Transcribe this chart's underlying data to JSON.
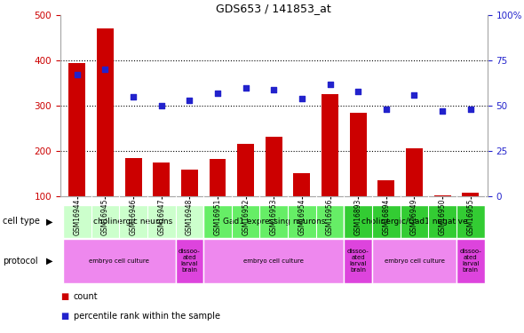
{
  "title": "GDS653 / 141853_at",
  "samples": [
    "GSM16944",
    "GSM16945",
    "GSM16946",
    "GSM16947",
    "GSM16948",
    "GSM16951",
    "GSM16952",
    "GSM16953",
    "GSM16954",
    "GSM16956",
    "GSM16893",
    "GSM16894",
    "GSM16949",
    "GSM16950",
    "GSM16955"
  ],
  "counts": [
    395,
    470,
    185,
    175,
    160,
    183,
    215,
    232,
    152,
    325,
    285,
    135,
    207,
    103,
    108
  ],
  "percentiles": [
    67,
    70,
    55,
    50,
    53,
    57,
    60,
    59,
    54,
    62,
    58,
    48,
    56,
    47,
    48
  ],
  "left_ylim": [
    100,
    500
  ],
  "left_yticks": [
    100,
    200,
    300,
    400,
    500
  ],
  "right_ylim": [
    0,
    100
  ],
  "right_yticks": [
    0,
    25,
    50,
    75,
    100
  ],
  "bar_color": "#cc0000",
  "dot_color": "#2222cc",
  "hline_values": [
    200,
    300,
    400
  ],
  "cell_type_groups": [
    {
      "label": "cholinergic neurons",
      "start": 0,
      "end": 4,
      "color": "#ccffcc"
    },
    {
      "label": "Gad1 expressing neurons",
      "start": 5,
      "end": 9,
      "color": "#66ee66"
    },
    {
      "label": "cholinergic/Gad1 negative",
      "start": 10,
      "end": 14,
      "color": "#33cc33"
    }
  ],
  "protocol_groups": [
    {
      "label": "embryo cell culture",
      "start": 0,
      "end": 3,
      "color": "#ee88ee"
    },
    {
      "label": "dissoo-\nated\nlarval\nbrain",
      "start": 4,
      "end": 4,
      "color": "#dd44dd"
    },
    {
      "label": "embryo cell culture",
      "start": 5,
      "end": 9,
      "color": "#ee88ee"
    },
    {
      "label": "dissoo-\nated\nlarval\nbrain",
      "start": 10,
      "end": 10,
      "color": "#dd44dd"
    },
    {
      "label": "embryo cell culture",
      "start": 11,
      "end": 13,
      "color": "#ee88ee"
    },
    {
      "label": "dissoo-\nated\nlarval\nbrain",
      "start": 14,
      "end": 14,
      "color": "#dd44dd"
    }
  ],
  "left_tick_color": "#cc0000",
  "right_tick_color": "#2222cc",
  "bg_color": "#ffffff",
  "xtick_bg": "#cccccc"
}
